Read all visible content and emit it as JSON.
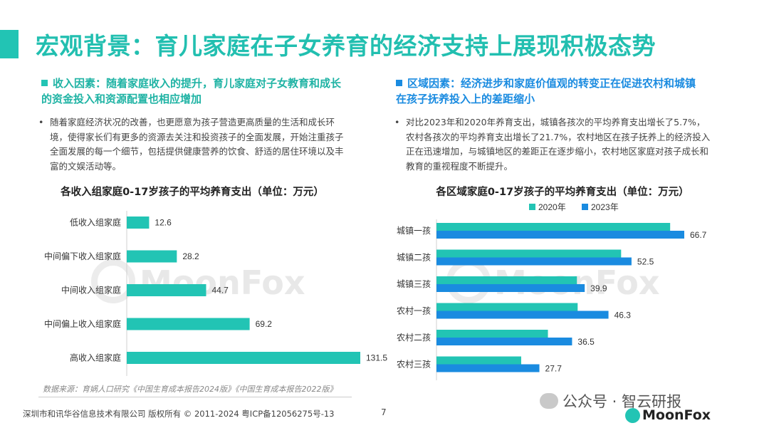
{
  "page": {
    "title": "宏观背景：育儿家庭在子女养育的经济支持上展现积极态势",
    "page_number": "7",
    "footer": "深圳市和讯华谷信息技术有限公司 版权所有 © 2011-2024 粤ICP备12056275号-13",
    "source": "数据来源：育娲人口研究《中国生育成本报告2024版》《中国生育成本报告2022版》",
    "watermark": "MoonFox",
    "wechat_label": "公众号 · 智云研报",
    "brand": "MoonFox"
  },
  "left": {
    "heading_line1": "收入因素：随着家庭收入的提升，育儿家庭对子女教育和成长",
    "heading_line2": "的资金投入和资源配置也相应增加",
    "bullet_dot": "•",
    "bullet": "随着家庭经济状况的改善，也更愿意为孩子营造更高质量的生活和成长环境，使得家长们有更多的资源去关注和投资孩子的全面发展，开始注重孩子全面发展的每一个细节，包括提供健康营养的饮食、舒适的居住环境以及丰富的文娱活动等。"
  },
  "right": {
    "heading_line1": "区域因素：经济进步和家庭价值观的转变正在促进农村和城镇",
    "heading_line2": "在孩子抚养投入上的差距缩小",
    "bullet_dot": "•",
    "bullet": "对比2023年和2020年养育支出，城镇各孩次的平均养育支出增长了5.7%，农村各孩次的平均养育支出增长了21.7%，农村地区在孩子抚养上的经济投入正在迅速增加，与城镇地区的差距正在逐步缩小，农村地区家庭对孩子成长和教育的重视程度不断提升。"
  },
  "colors": {
    "teal": "#22c4b4",
    "blue": "#1a8be0",
    "title": "#22bfb0"
  },
  "chart_data": [
    {
      "type": "bar",
      "orientation": "horizontal",
      "title": "各收入组家庭0-17岁孩子的平均养育支出（单位：万元）",
      "categories": [
        "低收入组家庭",
        "中间偏下收入组家庭",
        "中间收入组家庭",
        "中间偏上收入组家庭",
        "高收入组家庭"
      ],
      "values": [
        12.6,
        28.2,
        44.7,
        69.2,
        131.5
      ],
      "value_labels": [
        "12.6",
        "28.2",
        "44.7",
        "69.2",
        "131.5"
      ],
      "xlim": [
        0,
        140
      ],
      "grid": false,
      "legend": "none"
    },
    {
      "type": "bar",
      "orientation": "horizontal",
      "title": "各区域家庭0-17岁孩子的平均养育支出（单位：万元）",
      "categories": [
        "城镇一孩",
        "城镇二孩",
        "城镇三孩",
        "农村一孩",
        "农村二孩",
        "农村三孩"
      ],
      "series": [
        {
          "name": "2020年",
          "values": [
            62.9,
            49.7,
            37.8,
            38.0,
            30.0,
            22.8
          ],
          "value_labels": [
            "",
            "",
            "",
            "",
            "",
            ""
          ]
        },
        {
          "name": "2023年",
          "values": [
            66.7,
            52.5,
            39.9,
            46.3,
            36.5,
            27.7
          ],
          "value_labels": [
            "66.7",
            "52.5",
            "39.9",
            "46.3",
            "36.5",
            "27.7"
          ]
        }
      ],
      "xlim": [
        0,
        70
      ],
      "grid": false,
      "legend": "top"
    }
  ]
}
